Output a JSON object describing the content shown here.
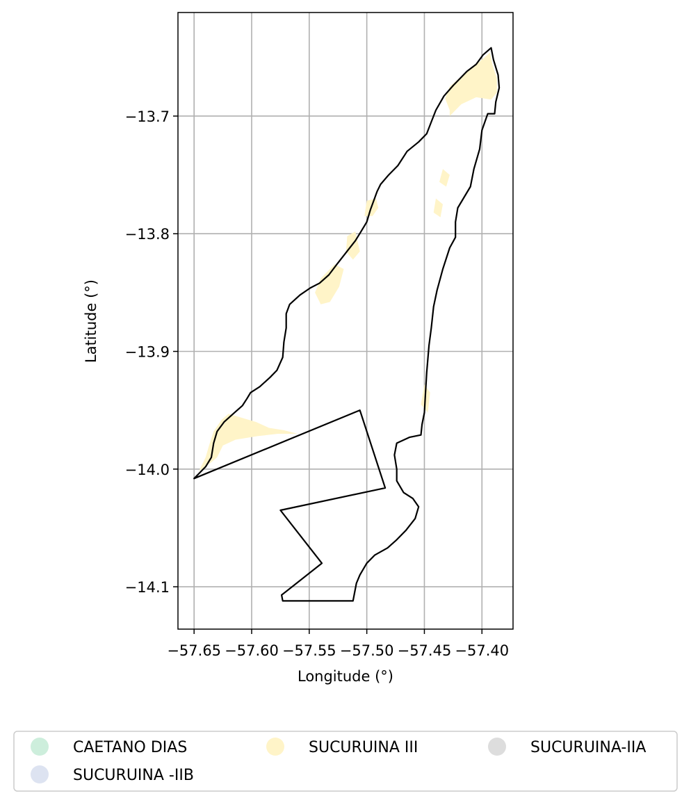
{
  "chart_data": {
    "type": "map",
    "title": "",
    "xlabel": "Longitude (°)",
    "ylabel": "Latitude (°)",
    "xlim": [
      -57.664,
      -57.373
    ],
    "ylim": [
      -14.136,
      -13.612
    ],
    "grid": true,
    "x_ticks": [
      -57.65,
      -57.6,
      -57.55,
      -57.5,
      -57.45,
      -57.4
    ],
    "x_tick_labels": [
      "−57.65",
      "−57.60",
      "−57.55",
      "−57.50",
      "−57.45",
      "−57.40"
    ],
    "y_ticks": [
      -13.7,
      -13.8,
      -13.9,
      -14.0,
      -14.1
    ],
    "y_tick_labels": [
      "−13.7",
      "−13.8",
      "−13.9",
      "−14.0",
      "−14.1"
    ],
    "legend_placement": "bottom",
    "legend": [
      {
        "label": "CAETANO DIAS",
        "color": "#cdeedc"
      },
      {
        "label": "SUCURUINA III",
        "color": "#fff4c8"
      },
      {
        "label": "SUCURUINA-IIA",
        "color": "#dddddd"
      },
      {
        "label": "SUCURUINA -IIB",
        "color": "#dde3f1"
      }
    ],
    "outline": [
      [
        -57.65,
        -14.008
      ],
      [
        -57.646,
        -14.004
      ],
      [
        -57.64,
        -13.998
      ],
      [
        -57.635,
        -13.99
      ],
      [
        -57.633,
        -13.978
      ],
      [
        -57.63,
        -13.968
      ],
      [
        -57.624,
        -13.96
      ],
      [
        -57.616,
        -13.953
      ],
      [
        -57.608,
        -13.946
      ],
      [
        -57.604,
        -13.94
      ],
      [
        -57.601,
        -13.935
      ],
      [
        -57.593,
        -13.93
      ],
      [
        -57.584,
        -13.922
      ],
      [
        -57.578,
        -13.916
      ],
      [
        -57.573,
        -13.905
      ],
      [
        -57.572,
        -13.892
      ],
      [
        -57.57,
        -13.88
      ],
      [
        -57.57,
        -13.868
      ],
      [
        -57.567,
        -13.86
      ],
      [
        -57.558,
        -13.852
      ],
      [
        -57.549,
        -13.846
      ],
      [
        -57.541,
        -13.842
      ],
      [
        -57.533,
        -13.835
      ],
      [
        -57.526,
        -13.826
      ],
      [
        -57.518,
        -13.816
      ],
      [
        -57.51,
        -13.806
      ],
      [
        -57.505,
        -13.798
      ],
      [
        -57.5,
        -13.79
      ],
      [
        -57.497,
        -13.78
      ],
      [
        -57.494,
        -13.772
      ],
      [
        -57.491,
        -13.764
      ],
      [
        -57.488,
        -13.758
      ],
      [
        -57.481,
        -13.75
      ],
      [
        -57.473,
        -13.742
      ],
      [
        -57.465,
        -13.73
      ],
      [
        -57.455,
        -13.722
      ],
      [
        -57.448,
        -13.715
      ],
      [
        -57.444,
        -13.705
      ],
      [
        -57.44,
        -13.695
      ],
      [
        -57.433,
        -13.683
      ],
      [
        -57.425,
        -13.674
      ],
      [
        -57.413,
        -13.662
      ],
      [
        -57.405,
        -13.656
      ],
      [
        -57.399,
        -13.648
      ],
      [
        -57.392,
        -13.642
      ],
      [
        -57.39,
        -13.652
      ],
      [
        -57.386,
        -13.665
      ],
      [
        -57.385,
        -13.676
      ],
      [
        -57.388,
        -13.688
      ],
      [
        -57.389,
        -13.698
      ],
      [
        -57.395,
        -13.698
      ],
      [
        -57.4,
        -13.712
      ],
      [
        -57.402,
        -13.728
      ],
      [
        -57.407,
        -13.745
      ],
      [
        -57.41,
        -13.76
      ],
      [
        -57.421,
        -13.778
      ],
      [
        -57.423,
        -13.79
      ],
      [
        -57.423,
        -13.803
      ],
      [
        -57.428,
        -13.812
      ],
      [
        -57.434,
        -13.83
      ],
      [
        -57.439,
        -13.848
      ],
      [
        -57.442,
        -13.862
      ],
      [
        -57.444,
        -13.88
      ],
      [
        -57.446,
        -13.895
      ],
      [
        -57.448,
        -13.918
      ],
      [
        -57.449,
        -13.935
      ],
      [
        -57.45,
        -13.952
      ],
      [
        -57.452,
        -13.962
      ],
      [
        -57.453,
        -13.971
      ],
      [
        -57.463,
        -13.973
      ],
      [
        -57.474,
        -13.978
      ],
      [
        -57.476,
        -13.988
      ],
      [
        -57.474,
        -14.0
      ],
      [
        -57.474,
        -14.01
      ],
      [
        -57.468,
        -14.02
      ],
      [
        -57.46,
        -14.025
      ],
      [
        -57.455,
        -14.032
      ],
      [
        -57.458,
        -14.042
      ],
      [
        -57.466,
        -14.052
      ],
      [
        -57.474,
        -14.06
      ],
      [
        -57.482,
        -14.067
      ],
      [
        -57.493,
        -14.073
      ],
      [
        -57.5,
        -14.08
      ],
      [
        -57.506,
        -14.09
      ],
      [
        -57.509,
        -14.097
      ],
      [
        -57.512,
        -14.112
      ],
      [
        -57.573,
        -14.112
      ],
      [
        -57.574,
        -14.107
      ],
      [
        -57.57,
        -14.104
      ],
      [
        -57.539,
        -14.08
      ],
      [
        -57.575,
        -14.035
      ],
      [
        -57.484,
        -14.016
      ],
      [
        -57.506,
        -13.95
      ],
      [
        -57.65,
        -14.008
      ]
    ],
    "highlighted_areas": [
      {
        "legend": "SUCURUINA III",
        "polygon": [
          [
            -57.428,
            -13.695
          ],
          [
            -57.432,
            -13.685
          ],
          [
            -57.428,
            -13.675
          ],
          [
            -57.42,
            -13.668
          ],
          [
            -57.41,
            -13.66
          ],
          [
            -57.4,
            -13.652
          ],
          [
            -57.393,
            -13.646
          ],
          [
            -57.391,
            -13.656
          ],
          [
            -57.387,
            -13.668
          ],
          [
            -57.387,
            -13.68
          ],
          [
            -57.392,
            -13.686
          ],
          [
            -57.405,
            -13.684
          ],
          [
            -57.418,
            -13.69
          ],
          [
            -57.428,
            -13.7
          ]
        ]
      },
      {
        "legend": "SUCURUINA III",
        "polygon": [
          [
            -57.5,
            -13.772
          ],
          [
            -57.492,
            -13.77
          ],
          [
            -57.49,
            -13.778
          ],
          [
            -57.495,
            -13.785
          ],
          [
            -57.502,
            -13.785
          ]
        ]
      },
      {
        "legend": "SUCURUINA III",
        "polygon": [
          [
            -57.517,
            -13.802
          ],
          [
            -57.51,
            -13.798
          ],
          [
            -57.506,
            -13.815
          ],
          [
            -57.512,
            -13.822
          ],
          [
            -57.518,
            -13.815
          ]
        ]
      },
      {
        "legend": "SUCURUINA III",
        "polygon": [
          [
            -57.54,
            -13.838
          ],
          [
            -57.528,
            -13.826
          ],
          [
            -57.52,
            -13.83
          ],
          [
            -57.524,
            -13.845
          ],
          [
            -57.532,
            -13.858
          ],
          [
            -57.54,
            -13.86
          ],
          [
            -57.545,
            -13.85
          ]
        ]
      },
      {
        "legend": "SUCURUINA III",
        "polygon": [
          [
            -57.434,
            -13.745
          ],
          [
            -57.428,
            -13.75
          ],
          [
            -57.431,
            -13.76
          ],
          [
            -57.437,
            -13.756
          ]
        ]
      },
      {
        "legend": "SUCURUINA III",
        "polygon": [
          [
            -57.44,
            -13.77
          ],
          [
            -57.434,
            -13.775
          ],
          [
            -57.436,
            -13.786
          ],
          [
            -57.442,
            -13.782
          ]
        ]
      },
      {
        "legend": "SUCURUINA III",
        "polygon": [
          [
            -57.45,
            -13.928
          ],
          [
            -57.445,
            -13.935
          ],
          [
            -57.447,
            -13.952
          ],
          [
            -57.453,
            -13.945
          ]
        ]
      },
      {
        "legend": "SUCURUINA III",
        "polygon": [
          [
            -57.633,
            -13.968
          ],
          [
            -57.626,
            -13.958
          ],
          [
            -57.62,
            -13.953
          ],
          [
            -57.61,
            -13.956
          ],
          [
            -57.596,
            -13.96
          ],
          [
            -57.585,
            -13.965
          ],
          [
            -57.572,
            -13.967
          ],
          [
            -57.56,
            -13.97
          ],
          [
            -57.577,
            -13.97
          ],
          [
            -57.595,
            -13.972
          ],
          [
            -57.614,
            -13.975
          ],
          [
            -57.625,
            -13.98
          ],
          [
            -57.63,
            -13.99
          ],
          [
            -57.636,
            -13.995
          ],
          [
            -57.646,
            -14.002
          ],
          [
            -57.64,
            -13.99
          ],
          [
            -57.637,
            -13.98
          ]
        ]
      }
    ]
  }
}
